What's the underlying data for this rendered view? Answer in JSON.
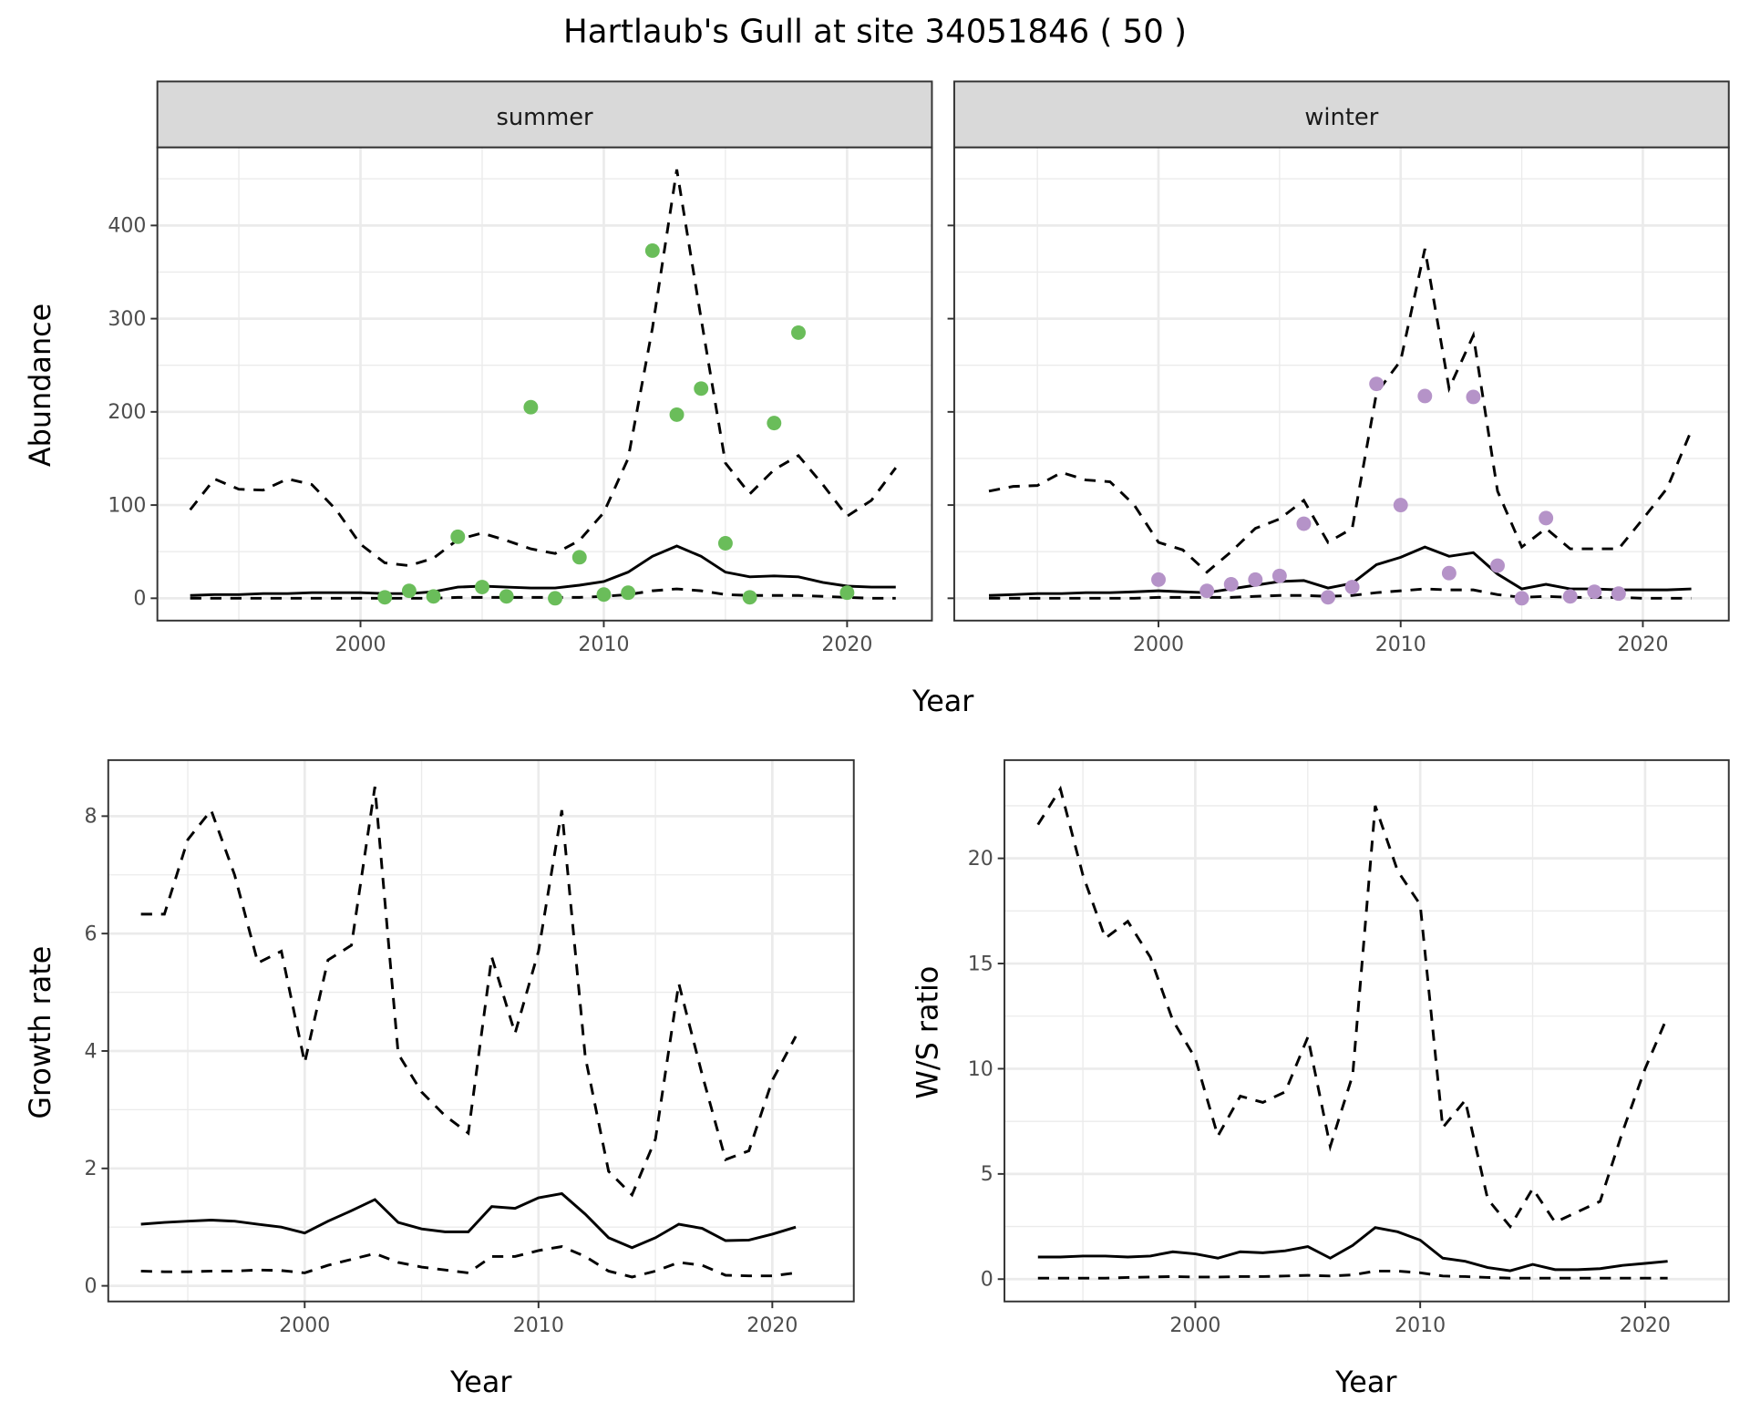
{
  "title": "Hartlaub's Gull at site 34051846 ( 50 )",
  "colors": {
    "summer_points": "#6abd5a",
    "winter_points": "#b593c8",
    "lines": "#000000",
    "strip_bg": "#d9d9d9",
    "grid": "#ebebeb"
  },
  "chart_data": [
    {
      "type": "line+scatter",
      "facet": "summer",
      "xlabel": "Year",
      "ylabel": "Abundance",
      "xticks": [
        2000,
        2010,
        2020
      ],
      "yticks": [
        0,
        100,
        200,
        300,
        400
      ],
      "xlim": [
        1991.5,
        2023.5
      ],
      "ylim": [
        -22,
        485
      ],
      "grid": true,
      "years": [
        1993,
        1994,
        1995,
        1996,
        1997,
        1998,
        1999,
        2000,
        2001,
        2002,
        2003,
        2004,
        2005,
        2006,
        2007,
        2008,
        2009,
        2010,
        2011,
        2012,
        2013,
        2014,
        2015,
        2016,
        2017,
        2018,
        2019,
        2020,
        2021,
        2022
      ],
      "mean": [
        3,
        4,
        4,
        5,
        5,
        6,
        6,
        6,
        5,
        5,
        7,
        12,
        13,
        12,
        11,
        11,
        14,
        18,
        28,
        45,
        56,
        45,
        28,
        23,
        24,
        23,
        17,
        13,
        12,
        12
      ],
      "upper": [
        95,
        128,
        117,
        116,
        128,
        122,
        95,
        58,
        38,
        35,
        43,
        63,
        70,
        62,
        53,
        48,
        62,
        92,
        150,
        290,
        460,
        300,
        145,
        112,
        138,
        153,
        122,
        88,
        105,
        140
      ],
      "lower": [
        0,
        0,
        0,
        0,
        0,
        0,
        0,
        0,
        0,
        0,
        0,
        1,
        1,
        1,
        1,
        1,
        1,
        2,
        4,
        8,
        10,
        8,
        4,
        3,
        3,
        3,
        2,
        1,
        0,
        0
      ],
      "points": [
        [
          2001,
          1
        ],
        [
          2002,
          8
        ],
        [
          2003,
          2
        ],
        [
          2004,
          66
        ],
        [
          2005,
          12
        ],
        [
          2006,
          2
        ],
        [
          2007,
          205
        ],
        [
          2008,
          0
        ],
        [
          2009,
          44
        ],
        [
          2010,
          4
        ],
        [
          2011,
          6
        ],
        [
          2012,
          373
        ],
        [
          2013,
          197
        ],
        [
          2014,
          225
        ],
        [
          2015,
          59
        ],
        [
          2016,
          1
        ],
        [
          2017,
          188
        ],
        [
          2018,
          285
        ],
        [
          2020,
          6
        ]
      ]
    },
    {
      "type": "line+scatter",
      "facet": "winter",
      "xlabel": "Year",
      "ylabel": "Abundance",
      "xticks": [
        2000,
        2010,
        2020
      ],
      "yticks": [
        0,
        100,
        200,
        300,
        400
      ],
      "xlim": [
        1991.5,
        2023.5
      ],
      "ylim": [
        -22,
        485
      ],
      "grid": true,
      "years": [
        1993,
        1994,
        1995,
        1996,
        1997,
        1998,
        1999,
        2000,
        2001,
        2002,
        2003,
        2004,
        2005,
        2006,
        2007,
        2008,
        2009,
        2010,
        2011,
        2012,
        2013,
        2014,
        2015,
        2016,
        2017,
        2018,
        2019,
        2020,
        2021,
        2022
      ],
      "mean": [
        3,
        4,
        5,
        5,
        6,
        6,
        7,
        8,
        7,
        6,
        10,
        14,
        18,
        19,
        11,
        16,
        36,
        44,
        55,
        45,
        49,
        26,
        10,
        15,
        10,
        10,
        9,
        9,
        9,
        10
      ],
      "upper": [
        115,
        120,
        121,
        135,
        127,
        125,
        100,
        60,
        52,
        28,
        50,
        75,
        85,
        105,
        60,
        75,
        220,
        255,
        375,
        225,
        282,
        115,
        55,
        75,
        53,
        53,
        53,
        85,
        118,
        180
      ],
      "lower": [
        0,
        0,
        0,
        0,
        0,
        0,
        0,
        1,
        1,
        1,
        1,
        2,
        3,
        3,
        2,
        3,
        6,
        8,
        10,
        9,
        9,
        4,
        1,
        2,
        1,
        1,
        1,
        0,
        0,
        0
      ],
      "points": [
        [
          2000,
          20
        ],
        [
          2002,
          8
        ],
        [
          2003,
          15
        ],
        [
          2004,
          20
        ],
        [
          2005,
          24
        ],
        [
          2006,
          80
        ],
        [
          2007,
          1
        ],
        [
          2008,
          12
        ],
        [
          2009,
          230
        ],
        [
          2010,
          100
        ],
        [
          2011,
          217
        ],
        [
          2012,
          27
        ],
        [
          2013,
          216
        ],
        [
          2014,
          35
        ],
        [
          2015,
          0
        ],
        [
          2016,
          86
        ],
        [
          2017,
          2
        ],
        [
          2018,
          7
        ],
        [
          2019,
          5
        ]
      ]
    },
    {
      "type": "line",
      "xlabel": "Year",
      "ylabel": "Growth rate",
      "xticks": [
        2000,
        2010,
        2020
      ],
      "yticks": [
        0,
        2,
        4,
        6,
        8
      ],
      "grid": true,
      "years": [
        1993,
        1994,
        1995,
        1996,
        1997,
        1998,
        1999,
        2000,
        2001,
        2002,
        2003,
        2004,
        2005,
        2006,
        2007,
        2008,
        2009,
        2010,
        2011,
        2012,
        2013,
        2014,
        2015,
        2016,
        2017,
        2018,
        2019,
        2020,
        2021
      ],
      "mean": [
        1.05,
        1.08,
        1.1,
        1.12,
        1.1,
        1.05,
        1.0,
        0.9,
        1.1,
        1.28,
        1.47,
        1.08,
        0.97,
        0.92,
        0.92,
        1.35,
        1.32,
        1.5,
        1.57,
        1.22,
        0.82,
        0.65,
        0.82,
        1.05,
        0.98,
        0.77,
        0.78,
        0.88,
        1.0
      ],
      "upper": [
        6.33,
        6.33,
        7.6,
        8.1,
        7.0,
        5.5,
        5.7,
        3.8,
        5.55,
        5.8,
        8.5,
        3.95,
        3.3,
        2.9,
        2.6,
        5.6,
        4.3,
        5.7,
        8.1,
        3.9,
        1.95,
        1.55,
        2.5,
        5.15,
        3.6,
        2.15,
        2.3,
        3.5,
        4.25
      ],
      "lower": [
        0.25,
        0.24,
        0.24,
        0.25,
        0.25,
        0.27,
        0.26,
        0.22,
        0.35,
        0.45,
        0.55,
        0.4,
        0.32,
        0.27,
        0.22,
        0.5,
        0.5,
        0.6,
        0.67,
        0.5,
        0.25,
        0.15,
        0.25,
        0.4,
        0.35,
        0.18,
        0.17,
        0.17,
        0.22
      ]
    },
    {
      "type": "line",
      "xlabel": "Year",
      "ylabel": "W/S ratio",
      "xticks": [
        2000,
        2010,
        2020
      ],
      "yticks": [
        0,
        5,
        10,
        15,
        20
      ],
      "grid": true,
      "years": [
        1993,
        1994,
        1995,
        1996,
        1997,
        1998,
        1999,
        2000,
        2001,
        2002,
        2003,
        2004,
        2005,
        2006,
        2007,
        2008,
        2009,
        2010,
        2011,
        2012,
        2013,
        2014,
        2015,
        2016,
        2017,
        2018,
        2019,
        2020,
        2021
      ],
      "mean": [
        1.05,
        1.05,
        1.1,
        1.1,
        1.05,
        1.1,
        1.3,
        1.2,
        1.0,
        1.3,
        1.25,
        1.35,
        1.55,
        1.0,
        1.6,
        2.45,
        2.25,
        1.85,
        1.0,
        0.85,
        0.55,
        0.4,
        0.7,
        0.45,
        0.45,
        0.5,
        0.65,
        0.75,
        0.85
      ],
      "upper": [
        21.6,
        23.3,
        19.2,
        16.2,
        17.0,
        15.3,
        12.3,
        10.5,
        6.8,
        8.7,
        8.4,
        8.9,
        11.5,
        6.3,
        9.7,
        22.5,
        19.4,
        17.8,
        7.2,
        8.5,
        3.8,
        2.5,
        4.3,
        2.7,
        3.2,
        3.7,
        7.0,
        10.0,
        12.5
      ],
      "lower": [
        0.05,
        0.05,
        0.05,
        0.05,
        0.08,
        0.1,
        0.12,
        0.1,
        0.1,
        0.12,
        0.12,
        0.15,
        0.18,
        0.15,
        0.2,
        0.38,
        0.38,
        0.3,
        0.15,
        0.12,
        0.08,
        0.05,
        0.05,
        0.05,
        0.05,
        0.05,
        0.05,
        0.05,
        0.05
      ]
    }
  ]
}
